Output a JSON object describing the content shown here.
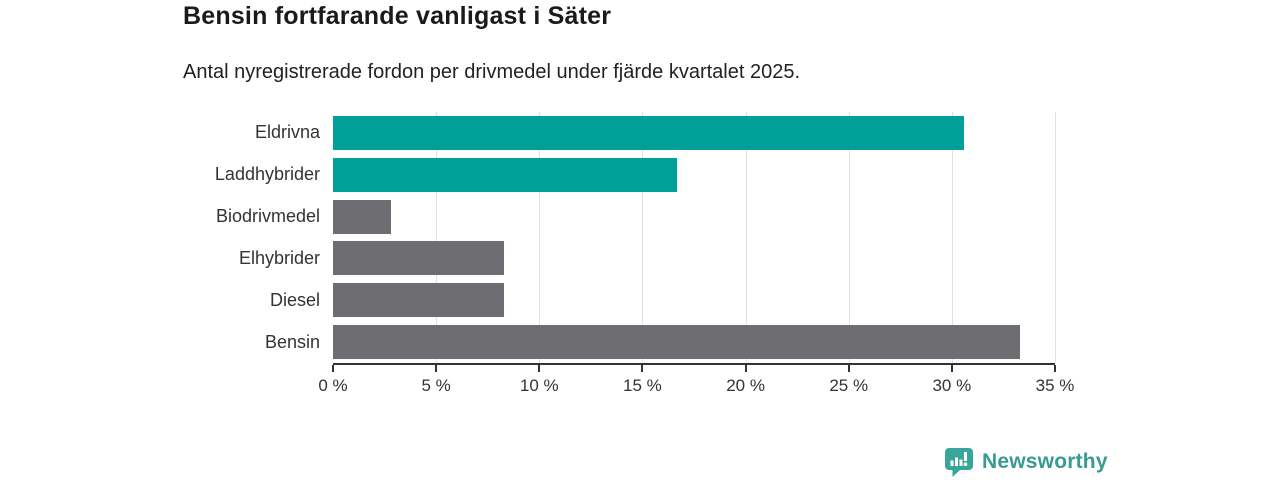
{
  "header": {
    "title": "Bensin fortfarande vanligast i Säter",
    "subtitle": "Antal nyregistrerade fordon per drivmedel under fjärde kvartalet 2025."
  },
  "chart_data": {
    "type": "bar",
    "orientation": "horizontal",
    "title": "Bensin fortfarande vanligast i Säter",
    "subtitle": "Antal nyregistrerade fordon per drivmedel under fjärde kvartalet 2025.",
    "categories": [
      "Eldrivna",
      "Laddhybrider",
      "Biodrivmedel",
      "Elhybrider",
      "Diesel",
      "Bensin"
    ],
    "values": [
      30.6,
      16.7,
      2.8,
      8.3,
      8.3,
      33.3
    ],
    "unit": "%",
    "bar_colors": [
      "#00a099",
      "#00a099",
      "#6d6d72",
      "#6d6d72",
      "#6d6d72",
      "#6d6d72"
    ],
    "highlight_color": "#00a099",
    "default_color": "#6d6d72",
    "xlabel": "",
    "ylabel": "",
    "xlim": [
      0,
      35
    ],
    "xticks": [
      0,
      5,
      10,
      15,
      20,
      25,
      30,
      35
    ],
    "tick_suffix": " %",
    "grid": true,
    "gridline_color": "#e0e0e0",
    "axis_color": "#333333",
    "legend": "none"
  },
  "footer": {
    "brand": "Newsworthy",
    "brand_color": "#399a91",
    "badge_color": "#38a69b"
  }
}
